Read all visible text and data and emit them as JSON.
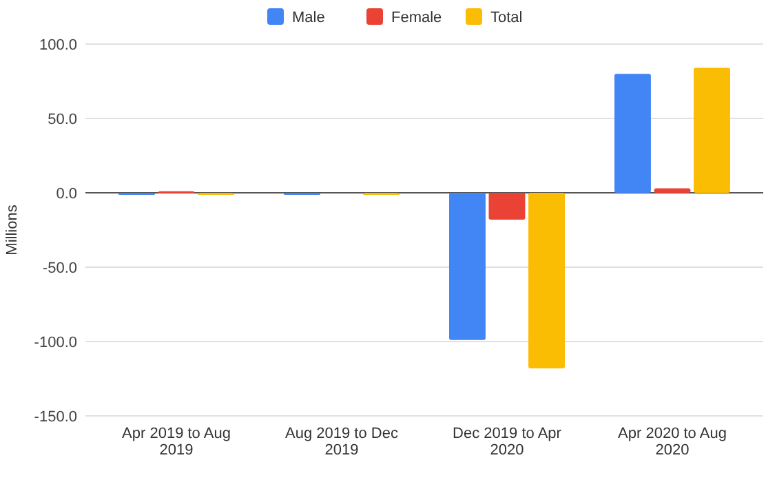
{
  "chart_data": {
    "type": "bar",
    "ylabel": "Millions",
    "categories": [
      "Apr 2019 to Aug 2019",
      "Aug 2019 to Dec 2019",
      "Dec 2019 to Apr 2020",
      "Apr 2020 to Aug 2020"
    ],
    "series": [
      {
        "name": "Male",
        "color": "#4285f4",
        "values": [
          -1,
          0,
          -99,
          80
        ]
      },
      {
        "name": "Female",
        "color": "#ea4335",
        "values": [
          1,
          null,
          -18,
          3
        ]
      },
      {
        "name": "Total",
        "color": "#fbbc04",
        "values": [
          -1,
          0,
          -118,
          84
        ]
      }
    ],
    "ylim": [
      -150,
      100
    ],
    "yticks": [
      {
        "value": -150,
        "label": "-150.0"
      },
      {
        "value": -100,
        "label": "-100.0"
      },
      {
        "value": -50,
        "label": "-50.0"
      },
      {
        "value": 0,
        "label": "0.0"
      },
      {
        "value": 50,
        "label": "50.0"
      },
      {
        "value": 100,
        "label": "100.0"
      }
    ],
    "grid": "y",
    "legend": "top"
  }
}
